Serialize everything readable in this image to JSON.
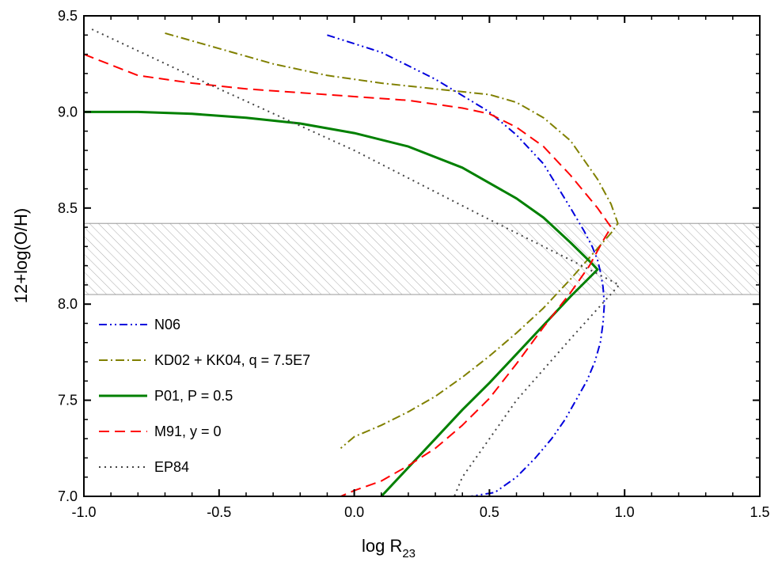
{
  "chart_data": {
    "type": "line",
    "xlabel_main": "log R",
    "xlabel_sub": "23",
    "ylabel": "12+log(O/H)",
    "xlim": [
      -1.0,
      1.5
    ],
    "ylim": [
      7.0,
      9.5
    ],
    "xticks": [
      -1.0,
      -0.5,
      0.0,
      0.5,
      1.0,
      1.5
    ],
    "xtick_labels": [
      "-1.0",
      "-0.5",
      "0.0",
      "0.5",
      "1.0",
      "1.5"
    ],
    "yticks": [
      7.0,
      7.5,
      8.0,
      8.5,
      9.0,
      9.5
    ],
    "ytick_labels": [
      "7.0",
      "7.5",
      "8.0",
      "8.5",
      "9.0",
      "9.5"
    ],
    "grid": false,
    "legend_position": "bottom-left",
    "shaded_band": {
      "y": [
        8.05,
        8.42
      ],
      "pattern": "hatched",
      "color": "#999999"
    },
    "series": [
      {
        "name": "N06",
        "color": "#0000dd",
        "dash": "dash-dot-dot",
        "points": [
          [
            -0.1,
            9.4
          ],
          [
            0.1,
            9.31
          ],
          [
            0.3,
            9.17
          ],
          [
            0.5,
            9.0
          ],
          [
            0.6,
            8.88
          ],
          [
            0.7,
            8.73
          ],
          [
            0.8,
            8.5
          ],
          [
            0.85,
            8.38
          ],
          [
            0.88,
            8.3
          ],
          [
            0.9,
            8.23
          ],
          [
            0.91,
            8.17
          ],
          [
            0.92,
            8.09
          ],
          [
            0.925,
            8.0
          ],
          [
            0.92,
            7.9
          ],
          [
            0.91,
            7.8
          ],
          [
            0.89,
            7.7
          ],
          [
            0.86,
            7.6
          ],
          [
            0.82,
            7.5
          ],
          [
            0.78,
            7.4
          ],
          [
            0.73,
            7.3
          ],
          [
            0.67,
            7.2
          ],
          [
            0.6,
            7.1
          ],
          [
            0.52,
            7.02
          ],
          [
            0.43,
            7.0
          ]
        ]
      },
      {
        "name": "KD02 + KK04, q = 7.5E7",
        "color": "#808000",
        "dash": "dash-dot",
        "points": [
          [
            -0.7,
            9.41
          ],
          [
            -0.5,
            9.33
          ],
          [
            -0.3,
            9.25
          ],
          [
            -0.1,
            9.19
          ],
          [
            0.1,
            9.15
          ],
          [
            0.3,
            9.12
          ],
          [
            0.5,
            9.09
          ],
          [
            0.6,
            9.05
          ],
          [
            0.7,
            8.97
          ],
          [
            0.8,
            8.85
          ],
          [
            0.9,
            8.65
          ],
          [
            0.95,
            8.52
          ],
          [
            0.975,
            8.42
          ],
          [
            0.95,
            8.37
          ],
          [
            0.9,
            8.29
          ],
          [
            0.8,
            8.13
          ],
          [
            0.7,
            7.98
          ],
          [
            0.6,
            7.85
          ],
          [
            0.5,
            7.73
          ],
          [
            0.4,
            7.62
          ],
          [
            0.3,
            7.52
          ],
          [
            0.2,
            7.44
          ],
          [
            0.1,
            7.37
          ],
          [
            0.0,
            7.31
          ],
          [
            -0.05,
            7.25
          ]
        ]
      },
      {
        "name": "P01, P = 0.5",
        "color": "#008000",
        "dash": "solid",
        "points": [
          [
            -1.0,
            9.0
          ],
          [
            -0.8,
            9.0
          ],
          [
            -0.6,
            8.99
          ],
          [
            -0.4,
            8.97
          ],
          [
            -0.2,
            8.94
          ],
          [
            0.0,
            8.89
          ],
          [
            0.2,
            8.82
          ],
          [
            0.4,
            8.71
          ],
          [
            0.6,
            8.55
          ],
          [
            0.7,
            8.45
          ],
          [
            0.8,
            8.32
          ],
          [
            0.88,
            8.21
          ],
          [
            0.9,
            8.18
          ],
          [
            0.8,
            8.04
          ],
          [
            0.7,
            7.89
          ],
          [
            0.6,
            7.74
          ],
          [
            0.5,
            7.59
          ],
          [
            0.4,
            7.45
          ],
          [
            0.3,
            7.3
          ],
          [
            0.2,
            7.15
          ],
          [
            0.1,
            7.0
          ]
        ]
      },
      {
        "name": "M91, y = 0",
        "color": "#ff0000",
        "dash": "dashed",
        "points": [
          [
            -1.0,
            9.3
          ],
          [
            -0.8,
            9.19
          ],
          [
            -0.6,
            9.15
          ],
          [
            -0.4,
            9.12
          ],
          [
            -0.2,
            9.1
          ],
          [
            0.0,
            9.08
          ],
          [
            0.2,
            9.06
          ],
          [
            0.4,
            9.02
          ],
          [
            0.5,
            8.99
          ],
          [
            0.6,
            8.92
          ],
          [
            0.7,
            8.82
          ],
          [
            0.8,
            8.67
          ],
          [
            0.9,
            8.5
          ],
          [
            0.95,
            8.4
          ],
          [
            0.92,
            8.33
          ],
          [
            0.87,
            8.2
          ],
          [
            0.8,
            8.06
          ],
          [
            0.7,
            7.88
          ],
          [
            0.6,
            7.69
          ],
          [
            0.5,
            7.51
          ],
          [
            0.4,
            7.37
          ],
          [
            0.3,
            7.25
          ],
          [
            0.2,
            7.16
          ],
          [
            0.1,
            7.08
          ],
          [
            0.0,
            7.03
          ],
          [
            -0.05,
            7.0
          ]
        ]
      },
      {
        "name": "EP84",
        "color": "#444444",
        "dash": "dotted",
        "points": [
          [
            -0.97,
            9.43
          ],
          [
            -0.5,
            9.12
          ],
          [
            0.0,
            8.8
          ],
          [
            0.5,
            8.44
          ],
          [
            0.8,
            8.23
          ],
          [
            0.98,
            8.1
          ],
          [
            0.8,
            7.82
          ],
          [
            0.6,
            7.5
          ],
          [
            0.5,
            7.3
          ],
          [
            0.4,
            7.1
          ],
          [
            0.37,
            7.0
          ]
        ]
      }
    ]
  }
}
